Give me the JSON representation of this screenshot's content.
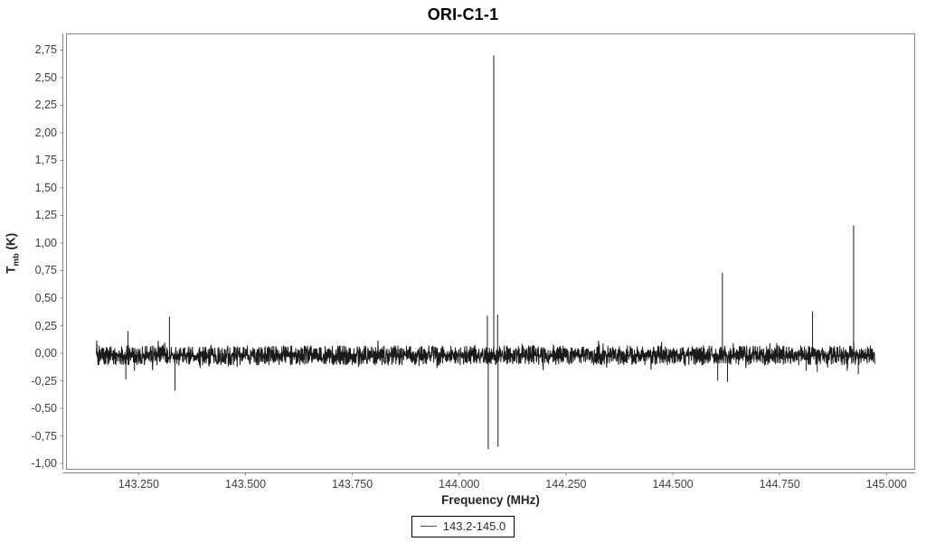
{
  "title": "ORI-C1-1",
  "axes": {
    "x_label": "Frequency (MHz)",
    "y_label_main": "T",
    "y_label_sub": "mb",
    "y_label_unit": " (K)"
  },
  "legend": {
    "label": "143.2-145.0"
  },
  "chart_data": {
    "type": "line",
    "title": "ORI-C1-1",
    "xlabel": "Frequency (MHz)",
    "ylabel": "Tmb (K)",
    "legend_entries": [
      "143.2-145.0"
    ],
    "legend_position": "bottom-center",
    "grid": false,
    "line_color": "#1a1a1a",
    "frame_color": "#858585",
    "tick_color": "#858585",
    "xlim": [
      143.081,
      145.066
    ],
    "ylim": [
      -1.053,
      2.897
    ],
    "data_x_range": [
      143.151,
      144.973
    ],
    "x_ticks": [
      {
        "value": 143.25,
        "label": "143.250"
      },
      {
        "value": 143.5,
        "label": "143.500"
      },
      {
        "value": 143.75,
        "label": "143.750"
      },
      {
        "value": 144.0,
        "label": "144.000"
      },
      {
        "value": 144.25,
        "label": "144.250"
      },
      {
        "value": 144.5,
        "label": "144.500"
      },
      {
        "value": 144.75,
        "label": "144.750"
      },
      {
        "value": 145.0,
        "label": "145.000"
      }
    ],
    "y_ticks": [
      {
        "value": 2.75,
        "label": "2,75"
      },
      {
        "value": 2.5,
        "label": "2,50"
      },
      {
        "value": 2.25,
        "label": "2,25"
      },
      {
        "value": 2.0,
        "label": "2,00"
      },
      {
        "value": 1.75,
        "label": "1,75"
      },
      {
        "value": 1.5,
        "label": "1,50"
      },
      {
        "value": 1.25,
        "label": "1,25"
      },
      {
        "value": 1.0,
        "label": "1,00"
      },
      {
        "value": 0.75,
        "label": "0,75"
      },
      {
        "value": 0.5,
        "label": "0,50"
      },
      {
        "value": 0.25,
        "label": "0,25"
      },
      {
        "value": 0.0,
        "label": "0,00"
      },
      {
        "value": -0.25,
        "label": "-0,25"
      },
      {
        "value": -0.5,
        "label": "-0,50"
      },
      {
        "value": -0.75,
        "label": "-0,75"
      },
      {
        "value": -1.0,
        "label": "-1,00"
      }
    ],
    "noise": {
      "baseline": -0.02,
      "band_top": 0.07,
      "band_bottom": -0.11,
      "outlier_fraction": 0.05,
      "outlier_scale": 1.55
    },
    "peaks": [
      {
        "freq": 143.22,
        "value": -0.24
      },
      {
        "freq": 143.225,
        "value": 0.2
      },
      {
        "freq": 143.24,
        "value": -0.16
      },
      {
        "freq": 143.322,
        "value": 0.33
      },
      {
        "freq": 143.335,
        "value": -0.34
      },
      {
        "freq": 144.066,
        "value": 0.34
      },
      {
        "freq": 144.068,
        "value": -0.87
      },
      {
        "freq": 144.081,
        "value": 2.7
      },
      {
        "freq": 144.09,
        "value": 0.35
      },
      {
        "freq": 144.091,
        "value": -0.85
      },
      {
        "freq": 144.605,
        "value": -0.25
      },
      {
        "freq": 144.616,
        "value": 0.73
      },
      {
        "freq": 144.628,
        "value": -0.26
      },
      {
        "freq": 144.812,
        "value": -0.16
      },
      {
        "freq": 144.827,
        "value": 0.38
      },
      {
        "freq": 144.838,
        "value": -0.17
      },
      {
        "freq": 144.908,
        "value": -0.16
      },
      {
        "freq": 144.923,
        "value": 1.16
      },
      {
        "freq": 144.934,
        "value": -0.19
      }
    ]
  }
}
